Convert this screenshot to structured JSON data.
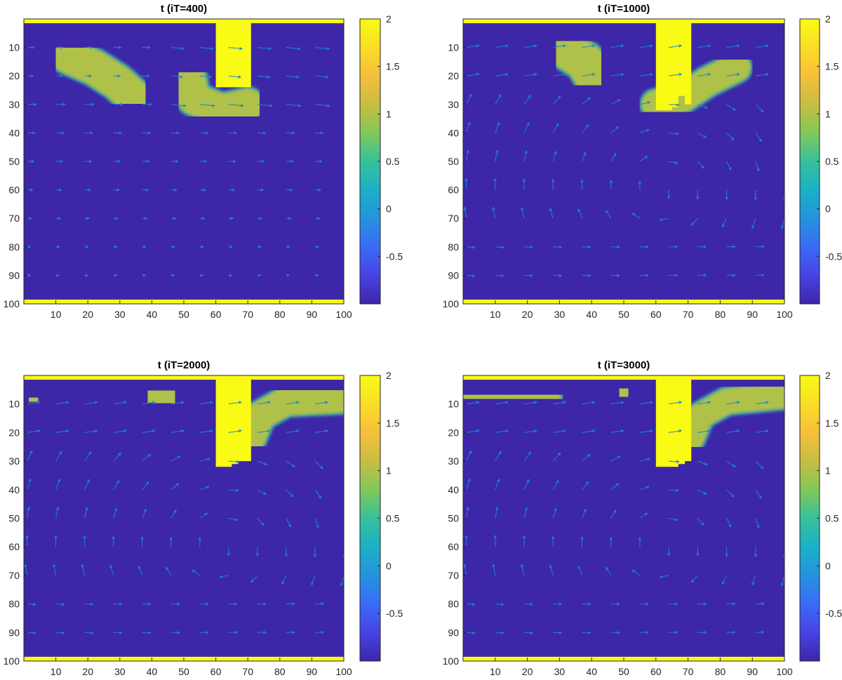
{
  "colormap": [
    "#3e26a8",
    "#4743e3",
    "#3a6bf7",
    "#2493de",
    "#1bb1c6",
    "#37c09a",
    "#81c85a",
    "#c7be41",
    "#f6bf3b",
    "#f9dd27",
    "#f9fb15"
  ],
  "quiver_color": "#1b86c9",
  "chart_data": [
    {
      "type": "heatmap",
      "title": "t (iT=400)",
      "x_range": [
        0,
        100
      ],
      "y_range": [
        0,
        100
      ],
      "y_reversed": true,
      "x_ticks": [
        10,
        20,
        30,
        40,
        50,
        60,
        70,
        80,
        90,
        100
      ],
      "y_ticks": [
        10,
        20,
        30,
        40,
        50,
        60,
        70,
        80,
        90,
        100
      ],
      "colorbar": {
        "min": -1,
        "max": 2,
        "ticks": [
          2,
          1.5,
          1,
          0.5,
          0,
          -0.5
        ]
      },
      "background_value": -1,
      "wall_value": 2,
      "walls": [
        {
          "x": [
            0,
            100
          ],
          "y": [
            0,
            1.5
          ]
        },
        {
          "x": [
            0,
            100
          ],
          "y": [
            98.5,
            100
          ]
        }
      ],
      "obstacle": [
        [
          60,
          0
        ],
        [
          71,
          0
        ],
        [
          71,
          24
        ],
        [
          60,
          24
        ]
      ],
      "blobs": [
        {
          "points": [
            [
              14,
              13
            ],
            [
              22,
              17
            ],
            [
              29,
              22
            ],
            [
              34,
              27
            ]
          ],
          "radius": 5.5,
          "value": 1
        },
        {
          "points": [
            [
              52,
              21
            ],
            [
              53,
              28
            ],
            [
              62,
              32
            ],
            [
              70,
              30
            ]
          ],
          "radius": 5,
          "value": 1
        }
      ],
      "quiver": {
        "spacing_x": 9,
        "spacing_y": 10,
        "fields": [
          {
            "type": "uniform",
            "u": 1,
            "v": 0
          },
          {
            "type": "vortex",
            "x": 85,
            "y": 70,
            "strength": 0
          },
          {
            "type": "wake",
            "x": 65,
            "y": 25,
            "strength": 0.6
          }
        ],
        "base_length": 14,
        "decay": "y"
      }
    },
    {
      "type": "heatmap",
      "title": "t (iT=1000)",
      "x_range": [
        0,
        100
      ],
      "y_range": [
        0,
        100
      ],
      "y_reversed": true,
      "x_ticks": [
        10,
        20,
        30,
        40,
        50,
        60,
        70,
        80,
        90,
        100
      ],
      "y_ticks": [
        10,
        20,
        30,
        40,
        50,
        60,
        70,
        80,
        90,
        100
      ],
      "colorbar": {
        "min": -1,
        "max": 2,
        "ticks": [
          2,
          1.5,
          1,
          0.5,
          0,
          -0.5
        ]
      },
      "background_value": -1,
      "wall_value": 2,
      "walls": [
        {
          "x": [
            0,
            100
          ],
          "y": [
            0,
            1.5
          ]
        },
        {
          "x": [
            0,
            100
          ],
          "y": [
            98.5,
            100
          ]
        }
      ],
      "obstacle": [
        [
          60,
          0
        ],
        [
          71,
          0
        ],
        [
          71,
          30
        ],
        [
          69,
          30
        ],
        [
          69,
          27
        ],
        [
          67,
          27
        ],
        [
          67,
          31
        ],
        [
          65,
          31
        ],
        [
          65,
          32
        ],
        [
          60,
          32
        ]
      ],
      "blobs": [
        {
          "points": [
            [
              31,
              10
            ],
            [
              38,
              15
            ],
            [
              41,
              21
            ]
          ],
          "radius": 6,
          "value": 1
        },
        {
          "points": [
            [
              60,
              30
            ],
            [
              68,
              28
            ],
            [
              76,
              22
            ],
            [
              85,
              17
            ]
          ],
          "radius": 4.5,
          "value": 1
        }
      ],
      "quiver": {
        "spacing_x": 9,
        "spacing_y": 10,
        "pattern": "vortex"
      }
    },
    {
      "type": "heatmap",
      "title": "t (iT=2000)",
      "x_range": [
        0,
        100
      ],
      "y_range": [
        0,
        100
      ],
      "y_reversed": true,
      "x_ticks": [
        10,
        20,
        30,
        40,
        50,
        60,
        70,
        80,
        90,
        100
      ],
      "y_ticks": [
        10,
        20,
        30,
        40,
        50,
        60,
        70,
        80,
        90,
        100
      ],
      "colorbar": {
        "min": -1,
        "max": 2,
        "ticks": [
          2,
          1.5,
          1,
          0.5,
          0,
          -0.5
        ]
      },
      "background_value": -1,
      "wall_value": 2,
      "walls": [
        {
          "x": [
            0,
            100
          ],
          "y": [
            0,
            1.5
          ]
        },
        {
          "x": [
            0,
            100
          ],
          "y": [
            98.5,
            100
          ]
        }
      ],
      "obstacle": [
        [
          60,
          0
        ],
        [
          71,
          0
        ],
        [
          71,
          30
        ],
        [
          67,
          30
        ],
        [
          67,
          31
        ],
        [
          65,
          31
        ],
        [
          65,
          32
        ],
        [
          60,
          32
        ]
      ],
      "blobs": [
        {
          "points": [
            [
              2,
              8
            ],
            [
              4,
              9
            ]
          ],
          "radius": 4,
          "value": 1
        },
        {
          "points": [
            [
              40,
              6
            ],
            [
              46,
              9
            ]
          ],
          "radius": 6.5,
          "value": 1
        },
        {
          "points": [
            [
              71,
              22
            ],
            [
              74,
              14
            ],
            [
              82,
              9
            ],
            [
              100,
              8
            ]
          ],
          "radius": 4.5,
          "value": 1
        }
      ],
      "quiver": {
        "spacing_x": 9,
        "spacing_y": 10,
        "pattern": "vortex"
      }
    },
    {
      "type": "heatmap",
      "title": "t (iT=3000)",
      "x_range": [
        0,
        100
      ],
      "y_range": [
        0,
        100
      ],
      "y_reversed": true,
      "x_ticks": [
        10,
        20,
        30,
        40,
        50,
        60,
        70,
        80,
        90,
        100
      ],
      "y_ticks": [
        10,
        20,
        30,
        40,
        50,
        60,
        70,
        80,
        90,
        100
      ],
      "colorbar": {
        "min": -1,
        "max": 2,
        "ticks": [
          2,
          1.5,
          1,
          0.5,
          0,
          -0.5
        ]
      },
      "background_value": -1,
      "wall_value": 2,
      "walls": [
        {
          "x": [
            0,
            100
          ],
          "y": [
            0,
            1.5
          ]
        },
        {
          "x": [
            0,
            100
          ],
          "y": [
            98.5,
            100
          ]
        }
      ],
      "obstacle": [
        [
          60,
          0
        ],
        [
          71,
          0
        ],
        [
          71,
          30
        ],
        [
          69,
          30
        ],
        [
          69,
          31
        ],
        [
          67,
          31
        ],
        [
          67,
          32
        ],
        [
          60,
          32
        ]
      ],
      "blobs": [
        {
          "points": [
            [
              0,
              7
            ],
            [
              14,
              7
            ],
            [
              26,
              8
            ]
          ],
          "radius": 4.5,
          "value": 1
        },
        {
          "points": [
            [
              49,
              5
            ],
            [
              51,
              7
            ]
          ],
          "radius": 4.5,
          "value": 1
        },
        {
          "points": [
            [
              71,
              22
            ],
            [
              74,
              14
            ],
            [
              82,
              9
            ],
            [
              100,
              7
            ]
          ],
          "radius": 4,
          "value": 1
        }
      ],
      "quiver": {
        "spacing_x": 9,
        "spacing_y": 10,
        "pattern": "vortex"
      }
    }
  ]
}
